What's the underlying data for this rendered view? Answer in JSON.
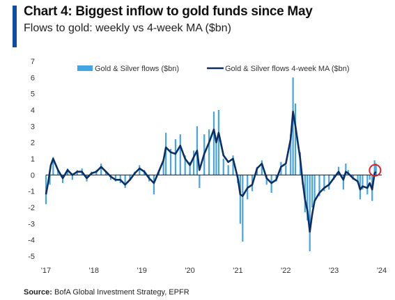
{
  "header": {
    "title": "Chart 4: Biggest inflow to gold funds since May",
    "subtitle": "Flows to gold: weekly vs 4-week MA ($bn)"
  },
  "footer": {
    "source_label": "Source:",
    "source_text": "BofA Global Investment Strategy, EPFR"
  },
  "colors": {
    "bars": "#45a5e0",
    "ma_line": "#0d2e63",
    "highlight_circle": "#d9232d",
    "accent": "#0d4ea3"
  },
  "chart_data": {
    "type": "bar",
    "title": "",
    "xlabel": "",
    "ylabel": "",
    "ylim": [
      -5,
      7
    ],
    "yticks": [
      "7",
      "6",
      "5",
      "4",
      "3",
      "2",
      "1",
      "0",
      "-1",
      "-2",
      "-3",
      "-4",
      "-5"
    ],
    "xticks": [
      "'17",
      "'18",
      "'19",
      "'20",
      "'21",
      "'22",
      "'23",
      "'24"
    ],
    "grid": false,
    "legend_position": "top",
    "series": [
      {
        "name": "Gold & Silver flows ($bn)",
        "type": "bar",
        "points": [
          [
            2017.0,
            -1.8
          ],
          [
            2017.08,
            -0.6
          ],
          [
            2017.15,
            1.1
          ],
          [
            2017.25,
            0.3
          ],
          [
            2017.35,
            -0.5
          ],
          [
            2017.45,
            0.4
          ],
          [
            2017.55,
            -0.3
          ],
          [
            2017.65,
            0.3
          ],
          [
            2017.75,
            0.4
          ],
          [
            2017.85,
            -0.4
          ],
          [
            2017.95,
            0.2
          ],
          [
            2018.05,
            0.3
          ],
          [
            2018.15,
            0.7
          ],
          [
            2018.25,
            0.2
          ],
          [
            2018.35,
            -0.3
          ],
          [
            2018.45,
            -0.4
          ],
          [
            2018.55,
            -0.5
          ],
          [
            2018.65,
            -0.8
          ],
          [
            2018.75,
            -0.3
          ],
          [
            2018.85,
            0.2
          ],
          [
            2018.95,
            0.6
          ],
          [
            2019.05,
            0.3
          ],
          [
            2019.15,
            -0.4
          ],
          [
            2019.25,
            -1.2
          ],
          [
            2019.35,
            0.3
          ],
          [
            2019.45,
            1.0
          ],
          [
            2019.5,
            2.6
          ],
          [
            2019.6,
            1.6
          ],
          [
            2019.7,
            2.2
          ],
          [
            2019.8,
            2.5
          ],
          [
            2019.9,
            1.2
          ],
          [
            2020.0,
            0.8
          ],
          [
            2020.08,
            1.5
          ],
          [
            2020.15,
            3.0
          ],
          [
            2020.2,
            -0.8
          ],
          [
            2020.3,
            2.5
          ],
          [
            2020.4,
            2.8
          ],
          [
            2020.5,
            3.9
          ],
          [
            2020.55,
            2.0
          ],
          [
            2020.6,
            4.0
          ],
          [
            2020.7,
            1.0
          ],
          [
            2020.8,
            0.6
          ],
          [
            2020.9,
            1.2
          ],
          [
            2021.0,
            -0.5
          ],
          [
            2021.05,
            -3.0
          ],
          [
            2021.1,
            -4.1
          ],
          [
            2021.2,
            -1.5
          ],
          [
            2021.3,
            -1.0
          ],
          [
            2021.4,
            0.5
          ],
          [
            2021.5,
            0.9
          ],
          [
            2021.6,
            -0.6
          ],
          [
            2021.7,
            -1.1
          ],
          [
            2021.8,
            -0.4
          ],
          [
            2021.9,
            0.8
          ],
          [
            2022.0,
            0.6
          ],
          [
            2022.1,
            2.5
          ],
          [
            2022.15,
            6.0
          ],
          [
            2022.2,
            4.4
          ],
          [
            2022.3,
            1.4
          ],
          [
            2022.35,
            -0.6
          ],
          [
            2022.4,
            -2.3
          ],
          [
            2022.45,
            -2.8
          ],
          [
            2022.5,
            -4.7
          ],
          [
            2022.55,
            -2.0
          ],
          [
            2022.6,
            -1.6
          ],
          [
            2022.7,
            -1.3
          ],
          [
            2022.8,
            -1.0
          ],
          [
            2022.9,
            -0.9
          ],
          [
            2023.0,
            -0.3
          ],
          [
            2023.1,
            0.5
          ],
          [
            2023.2,
            -0.9
          ],
          [
            2023.25,
            0.7
          ],
          [
            2023.3,
            0.3
          ],
          [
            2023.4,
            -0.3
          ],
          [
            2023.5,
            -0.5
          ],
          [
            2023.55,
            -1.5
          ],
          [
            2023.6,
            -0.9
          ],
          [
            2023.7,
            -1.2
          ],
          [
            2023.75,
            -0.3
          ],
          [
            2023.8,
            -1.6
          ],
          [
            2023.85,
            0.9
          ],
          [
            2023.88,
            0.7
          ]
        ]
      },
      {
        "name": "Gold & Silver flows 4-week MA ($bn)",
        "type": "line",
        "points": [
          [
            2017.0,
            -1.2
          ],
          [
            2017.05,
            -0.4
          ],
          [
            2017.1,
            0.6
          ],
          [
            2017.15,
            1.0
          ],
          [
            2017.25,
            0.3
          ],
          [
            2017.35,
            -0.2
          ],
          [
            2017.45,
            0.3
          ],
          [
            2017.55,
            0.0
          ],
          [
            2017.65,
            0.2
          ],
          [
            2017.75,
            0.2
          ],
          [
            2017.85,
            -0.2
          ],
          [
            2017.95,
            0.1
          ],
          [
            2018.05,
            0.2
          ],
          [
            2018.15,
            0.5
          ],
          [
            2018.25,
            0.2
          ],
          [
            2018.35,
            -0.1
          ],
          [
            2018.45,
            -0.3
          ],
          [
            2018.55,
            -0.3
          ],
          [
            2018.65,
            -0.6
          ],
          [
            2018.75,
            -0.3
          ],
          [
            2018.85,
            0.1
          ],
          [
            2018.95,
            0.4
          ],
          [
            2019.05,
            0.2
          ],
          [
            2019.15,
            -0.2
          ],
          [
            2019.25,
            -0.5
          ],
          [
            2019.35,
            0.2
          ],
          [
            2019.45,
            0.9
          ],
          [
            2019.5,
            1.7
          ],
          [
            2019.6,
            1.4
          ],
          [
            2019.7,
            1.3
          ],
          [
            2019.8,
            1.8
          ],
          [
            2019.9,
            1.0
          ],
          [
            2020.0,
            0.6
          ],
          [
            2020.08,
            1.1
          ],
          [
            2020.15,
            1.5
          ],
          [
            2020.2,
            0.3
          ],
          [
            2020.3,
            1.3
          ],
          [
            2020.4,
            2.0
          ],
          [
            2020.5,
            2.8
          ],
          [
            2020.55,
            2.0
          ],
          [
            2020.6,
            2.6
          ],
          [
            2020.7,
            1.2
          ],
          [
            2020.8,
            0.8
          ],
          [
            2020.9,
            1.0
          ],
          [
            2021.0,
            -0.2
          ],
          [
            2021.05,
            -1.2
          ],
          [
            2021.1,
            -1.3
          ],
          [
            2021.2,
            -0.8
          ],
          [
            2021.3,
            -0.6
          ],
          [
            2021.4,
            0.4
          ],
          [
            2021.5,
            0.7
          ],
          [
            2021.6,
            -0.2
          ],
          [
            2021.7,
            -0.5
          ],
          [
            2021.8,
            -0.3
          ],
          [
            2021.9,
            0.5
          ],
          [
            2022.0,
            0.7
          ],
          [
            2022.1,
            2.2
          ],
          [
            2022.15,
            3.9
          ],
          [
            2022.2,
            3.0
          ],
          [
            2022.3,
            1.0
          ],
          [
            2022.35,
            -0.4
          ],
          [
            2022.4,
            -1.5
          ],
          [
            2022.45,
            -2.2
          ],
          [
            2022.5,
            -3.5
          ],
          [
            2022.55,
            -2.4
          ],
          [
            2022.6,
            -1.6
          ],
          [
            2022.7,
            -1.1
          ],
          [
            2022.8,
            -0.8
          ],
          [
            2022.9,
            -0.6
          ],
          [
            2023.0,
            -0.2
          ],
          [
            2023.1,
            0.2
          ],
          [
            2023.2,
            -0.3
          ],
          [
            2023.25,
            0.2
          ],
          [
            2023.3,
            0.1
          ],
          [
            2023.4,
            -0.2
          ],
          [
            2023.5,
            -0.4
          ],
          [
            2023.55,
            -0.9
          ],
          [
            2023.6,
            -0.7
          ],
          [
            2023.7,
            -0.8
          ],
          [
            2023.75,
            -0.5
          ],
          [
            2023.8,
            -0.9
          ],
          [
            2023.85,
            0.1
          ],
          [
            2023.88,
            0.2
          ]
        ]
      }
    ],
    "annotations": [
      {
        "type": "circle",
        "x": 2023.86,
        "y": 0.2,
        "note": "latest week highlighted"
      }
    ]
  }
}
